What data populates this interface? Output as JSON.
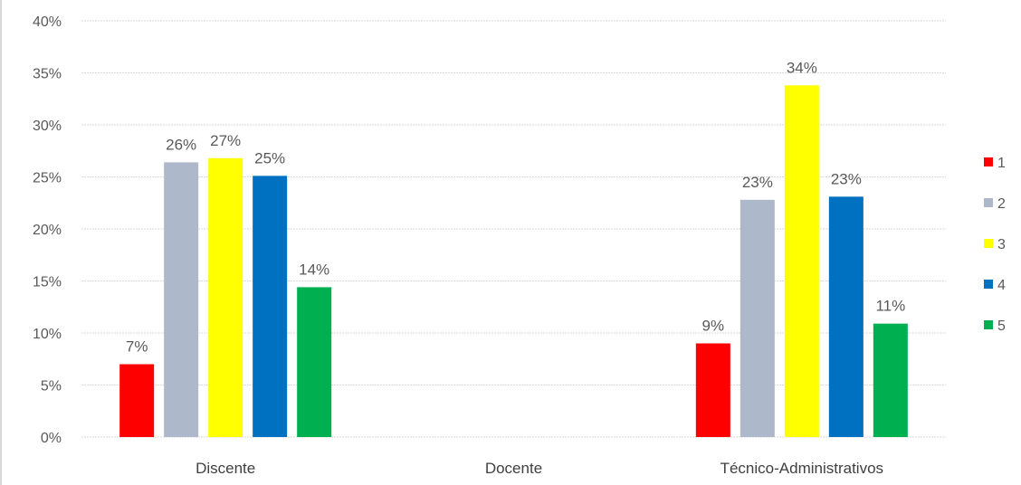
{
  "chart_data": {
    "type": "bar",
    "categories": [
      "Discente",
      "Docente",
      "Técnico-Administrativos"
    ],
    "series": [
      {
        "name": "1",
        "color": "#ff0000",
        "values": [
          7,
          null,
          9
        ],
        "labels": [
          "7%",
          "",
          "9%"
        ]
      },
      {
        "name": "2",
        "color": "#adb9ca",
        "values": [
          26.4,
          null,
          22.8
        ],
        "labels": [
          "26%",
          "",
          "23%"
        ]
      },
      {
        "name": "3",
        "color": "#ffff00",
        "values": [
          26.8,
          null,
          33.8
        ],
        "labels": [
          "27%",
          "",
          "34%"
        ]
      },
      {
        "name": "4",
        "color": "#0070c0",
        "values": [
          25.1,
          null,
          23.1
        ],
        "labels": [
          "25%",
          "",
          "23%"
        ]
      },
      {
        "name": "5",
        "color": "#00b050",
        "values": [
          14.4,
          null,
          10.9
        ],
        "labels": [
          "14%",
          "",
          "11%"
        ]
      }
    ],
    "yticks": [
      0,
      5,
      10,
      15,
      20,
      25,
      30,
      35,
      40
    ],
    "ytick_labels": [
      "0%",
      "5%",
      "10%",
      "15%",
      "20%",
      "25%",
      "30%",
      "35%",
      "40%"
    ],
    "ylim": [
      0,
      40
    ],
    "grid": true,
    "legend_position": "right"
  }
}
